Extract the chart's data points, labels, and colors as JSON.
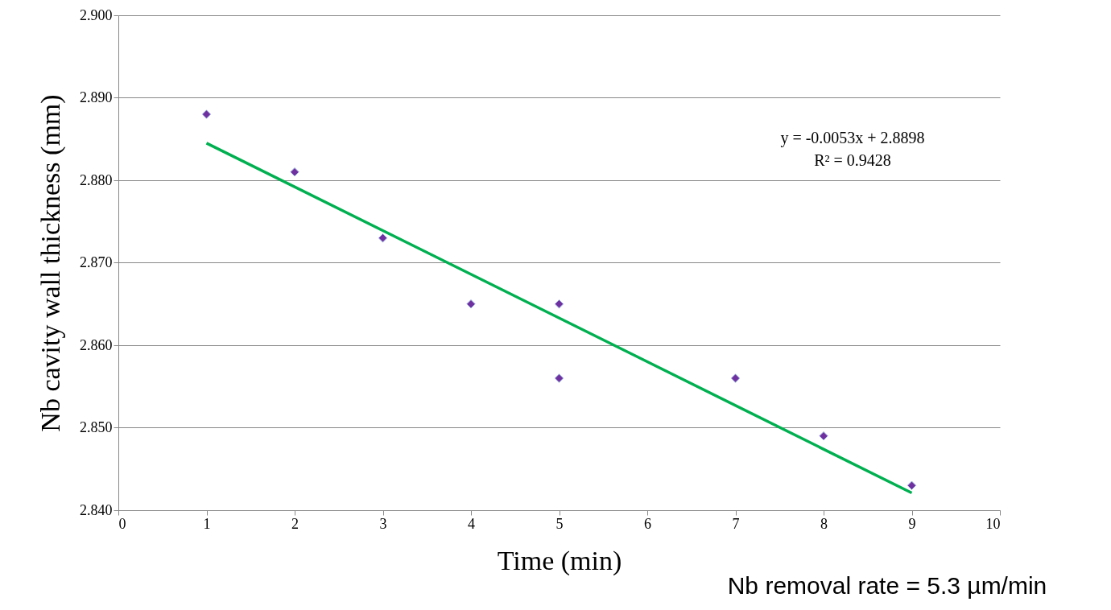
{
  "chart_data": {
    "type": "scatter",
    "xlabel": "Time (min)",
    "ylabel": "Nb cavity wall thickness (mm)",
    "xlim": [
      0,
      10
    ],
    "xticks": [
      0,
      1,
      2,
      3,
      4,
      5,
      6,
      7,
      8,
      9,
      10
    ],
    "ylim": [
      2.84,
      2.9
    ],
    "yticks": [
      {
        "value": 2.84,
        "label": "2.840"
      },
      {
        "value": 2.85,
        "label": "2.850"
      },
      {
        "value": 2.86,
        "label": "2.860"
      },
      {
        "value": 2.87,
        "label": "2.870"
      },
      {
        "value": 2.88,
        "label": "2.880"
      },
      {
        "value": 2.89,
        "label": "2.890"
      },
      {
        "value": 2.9,
        "label": "2.900"
      }
    ],
    "grid": "y",
    "marker": "diamond",
    "series": [
      {
        "color": "#7030a0",
        "x": [
          1,
          2,
          3,
          4,
          5,
          5,
          7,
          8,
          9
        ],
        "values": [
          2.888,
          2.881,
          2.873,
          2.865,
          2.865,
          2.856,
          2.856,
          2.849,
          2.843
        ]
      },
      {
        "type": "line",
        "marker": "none",
        "color": "#00b050",
        "x": [
          1,
          9
        ],
        "values": [
          2.8845,
          2.8421
        ]
      }
    ],
    "annotations": [
      "y = -0.0053x + 2.8898",
      "R² = 0.9428",
      "Nb removal rate = 5.3 µm/min"
    ]
  }
}
